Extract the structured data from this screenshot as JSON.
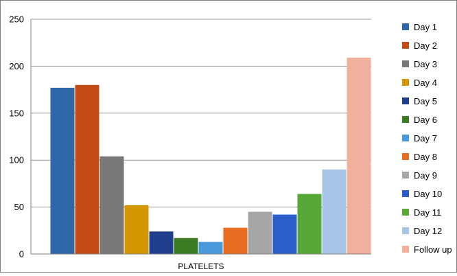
{
  "chart_data": {
    "type": "bar",
    "categories": [
      "PLATELETS"
    ],
    "xlabel": "PLATELETS",
    "ylabel": "",
    "title": "",
    "ylim": [
      0,
      250
    ],
    "yticks": [
      0,
      50,
      100,
      150,
      200,
      250
    ],
    "grid": true,
    "legend_position": "right",
    "series": [
      {
        "name": "Day 1",
        "values": [
          177
        ],
        "color": "#2e66a8"
      },
      {
        "name": "Day 2",
        "values": [
          180
        ],
        "color": "#c24b16"
      },
      {
        "name": "Day 3",
        "values": [
          104
        ],
        "color": "#787878"
      },
      {
        "name": "Day 4",
        "values": [
          52
        ],
        "color": "#d49700"
      },
      {
        "name": "Day 5",
        "values": [
          24
        ],
        "color": "#1f3f8d"
      },
      {
        "name": "Day 6",
        "values": [
          17
        ],
        "color": "#3c7c24"
      },
      {
        "name": "Day 7",
        "values": [
          13
        ],
        "color": "#4a99dd"
      },
      {
        "name": "Day 8",
        "values": [
          28
        ],
        "color": "#e76c1f"
      },
      {
        "name": "Day 9",
        "values": [
          45
        ],
        "color": "#a6a6a6"
      },
      {
        "name": "Day 10",
        "values": [
          42
        ],
        "color": "#2d5dc8"
      },
      {
        "name": "Day 11",
        "values": [
          64
        ],
        "color": "#58a838"
      },
      {
        "name": "Day 12",
        "values": [
          90
        ],
        "color": "#a7c3e6"
      },
      {
        "name": "Follow up",
        "values": [
          209
        ],
        "color": "#f1b09b"
      }
    ]
  }
}
